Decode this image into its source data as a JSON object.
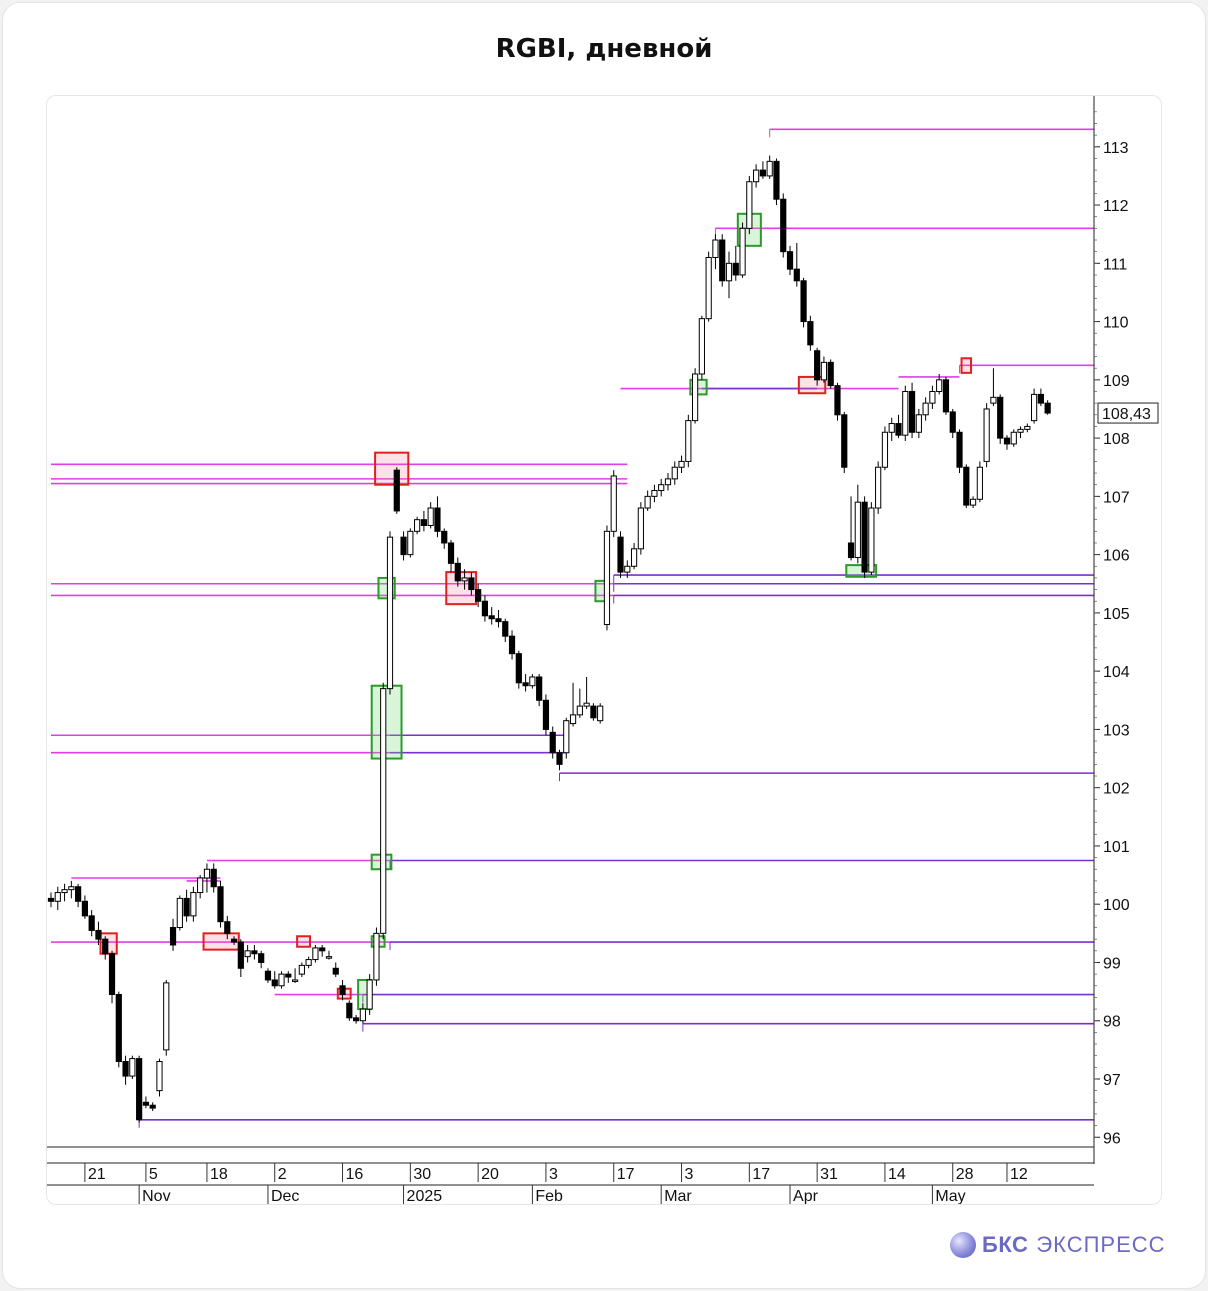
{
  "page": {
    "title": "RGBI, дневной",
    "logo_bold": "БКС",
    "logo_light": "ЭКСПРЕСС"
  },
  "chart_data": {
    "type": "candlestick",
    "title": "RGBI, дневной",
    "last_price_label": "108,43",
    "ylim": [
      95.85,
      113.7
    ],
    "y_ticks": [
      96,
      97,
      98,
      99,
      100,
      101,
      102,
      103,
      104,
      105,
      106,
      107,
      108,
      109,
      110,
      111,
      112,
      113
    ],
    "x_day_ticks": [
      {
        "label": "21",
        "idx": 5
      },
      {
        "label": "5",
        "idx": 14
      },
      {
        "label": "18",
        "idx": 23
      },
      {
        "label": "2",
        "idx": 33
      },
      {
        "label": "16",
        "idx": 43
      },
      {
        "label": "30",
        "idx": 53
      },
      {
        "label": "20",
        "idx": 63
      },
      {
        "label": "3",
        "idx": 73
      },
      {
        "label": "17",
        "idx": 83
      },
      {
        "label": "3",
        "idx": 93
      },
      {
        "label": "17",
        "idx": 103
      },
      {
        "label": "31",
        "idx": 113
      },
      {
        "label": "14",
        "idx": 123
      },
      {
        "label": "28",
        "idx": 133
      },
      {
        "label": "12",
        "idx": 141
      }
    ],
    "x_month_ticks": [
      {
        "label": "Nov",
        "idx": 13
      },
      {
        "label": "Dec",
        "idx": 32
      },
      {
        "label": "2025",
        "idx": 52
      },
      {
        "label": "Feb",
        "idx": 71
      },
      {
        "label": "Mar",
        "idx": 90
      },
      {
        "label": "Apr",
        "idx": 109
      },
      {
        "label": "May",
        "idx": 130
      }
    ],
    "candles": [
      [
        100.1,
        100.2,
        99.95,
        100.05
      ],
      [
        100.05,
        100.3,
        99.9,
        100.2
      ],
      [
        100.2,
        100.35,
        100.05,
        100.25
      ],
      [
        100.25,
        100.4,
        100.1,
        100.3
      ],
      [
        100.3,
        100.35,
        99.95,
        100.05
      ],
      [
        100.05,
        100.15,
        99.75,
        99.8
      ],
      [
        99.8,
        99.9,
        99.45,
        99.55
      ],
      [
        99.55,
        99.7,
        99.3,
        99.4
      ],
      [
        99.4,
        99.45,
        99.05,
        99.15
      ],
      [
        99.15,
        99.2,
        98.3,
        98.45
      ],
      [
        98.45,
        98.5,
        97.2,
        97.3
      ],
      [
        97.3,
        97.4,
        96.9,
        97.05
      ],
      [
        97.05,
        97.4,
        97.0,
        97.35
      ],
      [
        97.35,
        97.4,
        96.25,
        96.3
      ],
      [
        96.6,
        96.7,
        96.5,
        96.55
      ],
      [
        96.55,
        96.6,
        96.45,
        96.5
      ],
      [
        96.8,
        97.35,
        96.7,
        97.3
      ],
      [
        97.5,
        98.7,
        97.4,
        98.65
      ],
      [
        99.6,
        99.75,
        99.2,
        99.3
      ],
      [
        99.6,
        100.15,
        99.55,
        100.1
      ],
      [
        100.1,
        100.25,
        99.7,
        99.8
      ],
      [
        99.8,
        100.3,
        99.7,
        100.2
      ],
      [
        100.2,
        100.5,
        100.1,
        100.45
      ],
      [
        100.45,
        100.7,
        100.2,
        100.6
      ],
      [
        100.6,
        100.7,
        100.2,
        100.3
      ],
      [
        100.3,
        100.4,
        99.6,
        99.7
      ],
      [
        99.7,
        99.8,
        99.4,
        99.5
      ],
      [
        99.4,
        99.45,
        99.3,
        99.35
      ],
      [
        99.35,
        99.4,
        98.75,
        98.9
      ],
      [
        99.1,
        99.3,
        99.0,
        99.2
      ],
      [
        99.2,
        99.3,
        99.05,
        99.15
      ],
      [
        99.15,
        99.2,
        98.9,
        99.0
      ],
      [
        98.85,
        98.9,
        98.65,
        98.7
      ],
      [
        98.7,
        98.85,
        98.55,
        98.6
      ],
      [
        98.6,
        98.85,
        98.55,
        98.8
      ],
      [
        98.8,
        98.85,
        98.65,
        98.75
      ],
      [
        98.7,
        98.9,
        98.65,
        98.7
      ],
      [
        98.8,
        99.0,
        98.75,
        98.95
      ],
      [
        98.95,
        99.1,
        98.9,
        99.05
      ],
      [
        99.05,
        99.3,
        99.0,
        99.25
      ],
      [
        99.25,
        99.3,
        99.1,
        99.2
      ],
      [
        99.1,
        99.2,
        99.05,
        99.1
      ],
      [
        98.9,
        99.0,
        98.75,
        98.8
      ],
      [
        98.6,
        98.7,
        98.35,
        98.45
      ],
      [
        98.3,
        98.35,
        98.0,
        98.05
      ],
      [
        98.05,
        98.1,
        97.95,
        98.0
      ],
      [
        98.0,
        98.3,
        97.95,
        98.2
      ],
      [
        98.2,
        98.8,
        98.1,
        98.7
      ],
      [
        98.7,
        99.6,
        98.6,
        99.5
      ],
      [
        99.5,
        103.8,
        99.4,
        103.7
      ],
      [
        103.7,
        106.4,
        103.6,
        106.3
      ],
      [
        107.45,
        107.5,
        106.7,
        106.75
      ],
      [
        106.3,
        106.4,
        105.9,
        106.0
      ],
      [
        106.0,
        106.45,
        105.95,
        106.4
      ],
      [
        106.4,
        106.65,
        106.35,
        106.6
      ],
      [
        106.6,
        106.75,
        106.4,
        106.5
      ],
      [
        106.5,
        106.9,
        106.45,
        106.8
      ],
      [
        106.8,
        107.0,
        106.3,
        106.4
      ],
      [
        106.4,
        106.45,
        106.1,
        106.2
      ],
      [
        106.2,
        106.25,
        105.7,
        105.85
      ],
      [
        105.85,
        105.95,
        105.45,
        105.55
      ],
      [
        105.55,
        105.75,
        105.4,
        105.6
      ],
      [
        105.6,
        105.7,
        105.3,
        105.4
      ],
      [
        105.4,
        105.5,
        105.1,
        105.2
      ],
      [
        105.2,
        105.3,
        104.85,
        104.95
      ],
      [
        104.95,
        105.1,
        104.8,
        104.9
      ],
      [
        104.9,
        105.05,
        104.75,
        104.85
      ],
      [
        104.85,
        104.9,
        104.5,
        104.6
      ],
      [
        104.6,
        104.7,
        104.2,
        104.3
      ],
      [
        104.3,
        104.35,
        103.7,
        103.8
      ],
      [
        103.8,
        103.95,
        103.65,
        103.75
      ],
      [
        103.75,
        103.95,
        103.7,
        103.9
      ],
      [
        103.9,
        103.95,
        103.4,
        103.5
      ],
      [
        103.5,
        103.6,
        102.9,
        103.0
      ],
      [
        102.95,
        103.05,
        102.5,
        102.6
      ],
      [
        102.6,
        102.65,
        102.3,
        102.4
      ],
      [
        102.6,
        103.2,
        102.5,
        103.15
      ],
      [
        103.1,
        103.8,
        103.05,
        103.25
      ],
      [
        103.25,
        103.7,
        103.2,
        103.4
      ],
      [
        103.4,
        103.9,
        103.35,
        103.45
      ],
      [
        103.4,
        103.45,
        103.15,
        103.2
      ],
      [
        103.15,
        103.45,
        103.1,
        103.4
      ],
      [
        104.8,
        106.5,
        104.7,
        106.4
      ],
      [
        106.4,
        107.45,
        106.3,
        107.35
      ],
      [
        106.3,
        106.4,
        105.6,
        105.7
      ],
      [
        105.7,
        105.9,
        105.6,
        105.8
      ],
      [
        105.8,
        106.2,
        105.75,
        106.1
      ],
      [
        106.1,
        106.9,
        106.0,
        106.8
      ],
      [
        106.8,
        107.1,
        106.75,
        107.0
      ],
      [
        107.0,
        107.2,
        106.9,
        107.1
      ],
      [
        107.1,
        107.3,
        107.0,
        107.2
      ],
      [
        107.2,
        107.4,
        107.1,
        107.3
      ],
      [
        107.3,
        107.6,
        107.2,
        107.5
      ],
      [
        107.5,
        107.7,
        107.4,
        107.6
      ],
      [
        107.6,
        108.4,
        107.5,
        108.3
      ],
      [
        108.3,
        109.2,
        108.25,
        109.1
      ],
      [
        109.1,
        110.1,
        109.0,
        110.05
      ],
      [
        110.05,
        111.2,
        110.0,
        111.1
      ],
      [
        111.1,
        111.5,
        110.9,
        111.4
      ],
      [
        111.4,
        111.5,
        110.6,
        110.7
      ],
      [
        110.7,
        111.2,
        110.4,
        111.0
      ],
      [
        111.0,
        111.3,
        110.7,
        110.8
      ],
      [
        110.8,
        111.7,
        110.75,
        111.6
      ],
      [
        111.6,
        112.5,
        111.5,
        112.4
      ],
      [
        112.4,
        112.7,
        112.3,
        112.6
      ],
      [
        112.6,
        112.75,
        112.45,
        112.5
      ],
      [
        112.5,
        112.85,
        112.45,
        112.75
      ],
      [
        112.75,
        112.8,
        112.0,
        112.1
      ],
      [
        112.1,
        112.2,
        111.1,
        111.2
      ],
      [
        111.2,
        111.3,
        110.8,
        110.9
      ],
      [
        110.9,
        111.35,
        110.6,
        110.7
      ],
      [
        110.7,
        110.75,
        109.9,
        110.0
      ],
      [
        110.0,
        110.1,
        109.5,
        109.6
      ],
      [
        109.5,
        109.55,
        108.9,
        109.0
      ],
      [
        109.0,
        109.4,
        108.95,
        109.3
      ],
      [
        109.3,
        109.35,
        108.85,
        108.9
      ],
      [
        108.9,
        108.95,
        108.3,
        108.4
      ],
      [
        108.4,
        108.45,
        107.4,
        107.5
      ],
      [
        106.2,
        107.0,
        105.9,
        105.95
      ],
      [
        105.95,
        107.2,
        105.85,
        106.9
      ],
      [
        106.9,
        107.0,
        105.6,
        105.7
      ],
      [
        105.7,
        106.9,
        105.65,
        106.8
      ],
      [
        106.8,
        107.6,
        106.7,
        107.5
      ],
      [
        107.5,
        108.2,
        107.45,
        108.1
      ],
      [
        108.1,
        108.35,
        107.95,
        108.25
      ],
      [
        108.25,
        108.4,
        108.0,
        108.05
      ],
      [
        108.05,
        108.9,
        107.95,
        108.8
      ],
      [
        108.8,
        108.95,
        108.0,
        108.1
      ],
      [
        108.1,
        108.5,
        108.0,
        108.4
      ],
      [
        108.4,
        108.7,
        108.3,
        108.6
      ],
      [
        108.6,
        108.9,
        108.5,
        108.8
      ],
      [
        108.8,
        109.1,
        108.75,
        109.0
      ],
      [
        109.0,
        109.05,
        108.4,
        108.45
      ],
      [
        108.45,
        108.5,
        108.0,
        108.1
      ],
      [
        108.1,
        108.15,
        107.4,
        107.5
      ],
      [
        107.5,
        107.55,
        106.8,
        106.85
      ],
      [
        106.85,
        107.0,
        106.8,
        106.95
      ],
      [
        106.95,
        107.6,
        106.9,
        107.5
      ],
      [
        107.6,
        108.6,
        107.5,
        108.5
      ],
      [
        108.6,
        109.2,
        108.55,
        108.7
      ],
      [
        108.7,
        108.75,
        107.9,
        108.0
      ],
      [
        108.0,
        108.05,
        107.8,
        107.9
      ],
      [
        107.9,
        108.15,
        107.85,
        108.1
      ],
      [
        108.1,
        108.2,
        108.0,
        108.15
      ],
      [
        108.15,
        108.25,
        108.1,
        108.2
      ],
      [
        108.3,
        108.85,
        108.25,
        108.75
      ],
      [
        108.75,
        108.85,
        108.55,
        108.6
      ],
      [
        108.6,
        108.65,
        108.4,
        108.43
      ]
    ],
    "levels": [
      {
        "price": 113.3,
        "from": 106,
        "color": "magenta"
      },
      {
        "price": 111.6,
        "from": 98,
        "color": "magenta"
      },
      {
        "price": 109.25,
        "from": 134,
        "color": "magenta"
      },
      {
        "price": 109.05,
        "from": 125,
        "to": 134,
        "color": "magenta"
      },
      {
        "price": 108.85,
        "from": 84,
        "to": 125,
        "color": "magenta"
      },
      {
        "price": 108.85,
        "from": 96,
        "to": 113,
        "color": "purple"
      },
      {
        "price": 107.55,
        "from": 0,
        "to": 85,
        "color": "magenta"
      },
      {
        "price": 107.3,
        "from": 0,
        "to": 85,
        "color": "magenta"
      },
      {
        "price": 107.22,
        "from": 0,
        "to": 85,
        "color": "magenta"
      },
      {
        "price": 105.65,
        "from": 83,
        "color": "purple"
      },
      {
        "price": 105.5,
        "from": 0,
        "to": 83,
        "color": "magenta"
      },
      {
        "price": 105.5,
        "from": 83,
        "color": "purple"
      },
      {
        "price": 105.3,
        "from": 0,
        "to": 83,
        "color": "magenta"
      },
      {
        "price": 105.3,
        "from": 83,
        "color": "purple"
      },
      {
        "price": 102.9,
        "from": 0,
        "to": 50,
        "color": "magenta"
      },
      {
        "price": 102.9,
        "from": 50,
        "to": 76,
        "color": "purple"
      },
      {
        "price": 102.6,
        "from": 0,
        "to": 50,
        "color": "magenta"
      },
      {
        "price": 102.6,
        "from": 50,
        "to": 76,
        "color": "purple"
      },
      {
        "price": 102.25,
        "from": 75,
        "color": "purple"
      },
      {
        "price": 100.75,
        "from": 23,
        "to": 50,
        "color": "magenta"
      },
      {
        "price": 100.75,
        "from": 50,
        "color": "purple"
      },
      {
        "price": 100.45,
        "from": 3,
        "to": 25,
        "color": "magenta"
      },
      {
        "price": 100.4,
        "from": 20,
        "to": 25,
        "color": "magenta"
      },
      {
        "price": 99.35,
        "from": 0,
        "to": 50,
        "color": "magenta"
      },
      {
        "price": 99.35,
        "from": 50,
        "color": "purple"
      },
      {
        "price": 98.45,
        "from": 33,
        "to": 46,
        "color": "magenta"
      },
      {
        "price": 98.45,
        "from": 46,
        "color": "purple"
      },
      {
        "price": 97.95,
        "from": 46,
        "color": "purple"
      },
      {
        "price": 96.3,
        "from": 13,
        "color": "purple"
      }
    ],
    "boxes": [
      {
        "from": 7.3,
        "to": 9.7,
        "low": 99.15,
        "high": 99.5,
        "color": "red"
      },
      {
        "from": 22.5,
        "to": 27.7,
        "low": 99.22,
        "high": 99.5,
        "color": "red"
      },
      {
        "from": 36.3,
        "to": 38.2,
        "low": 99.27,
        "high": 99.45,
        "color": "red"
      },
      {
        "from": 42.3,
        "to": 44.2,
        "low": 98.38,
        "high": 98.55,
        "color": "red"
      },
      {
        "from": 45.3,
        "to": 47.2,
        "low": 98.2,
        "high": 98.7,
        "color": "green"
      },
      {
        "from": 47.3,
        "to": 49.2,
        "low": 99.27,
        "high": 99.45,
        "color": "green"
      },
      {
        "from": 47.3,
        "to": 50.2,
        "low": 100.6,
        "high": 100.85,
        "color": "green"
      },
      {
        "from": 47.3,
        "to": 51.7,
        "low": 102.5,
        "high": 103.75,
        "color": "green"
      },
      {
        "from": 48.3,
        "to": 50.7,
        "low": 105.25,
        "high": 105.6,
        "color": "green"
      },
      {
        "from": 47.8,
        "to": 52.7,
        "low": 107.2,
        "high": 107.75,
        "color": "red"
      },
      {
        "from": 58.3,
        "to": 62.7,
        "low": 105.15,
        "high": 105.7,
        "color": "red"
      },
      {
        "from": 80.3,
        "to": 82.2,
        "low": 105.2,
        "high": 105.55,
        "color": "green"
      },
      {
        "from": 94.3,
        "to": 96.7,
        "low": 108.75,
        "high": 109.0,
        "color": "green"
      },
      {
        "from": 101.3,
        "to": 104.7,
        "low": 111.3,
        "high": 111.85,
        "color": "green"
      },
      {
        "from": 110.3,
        "to": 114.2,
        "low": 108.77,
        "high": 109.05,
        "color": "red"
      },
      {
        "from": 117.3,
        "to": 121.7,
        "low": 105.62,
        "high": 105.82,
        "color": "green"
      },
      {
        "from": 134.3,
        "to": 135.7,
        "low": 109.12,
        "high": 109.37,
        "color": "red"
      }
    ]
  }
}
